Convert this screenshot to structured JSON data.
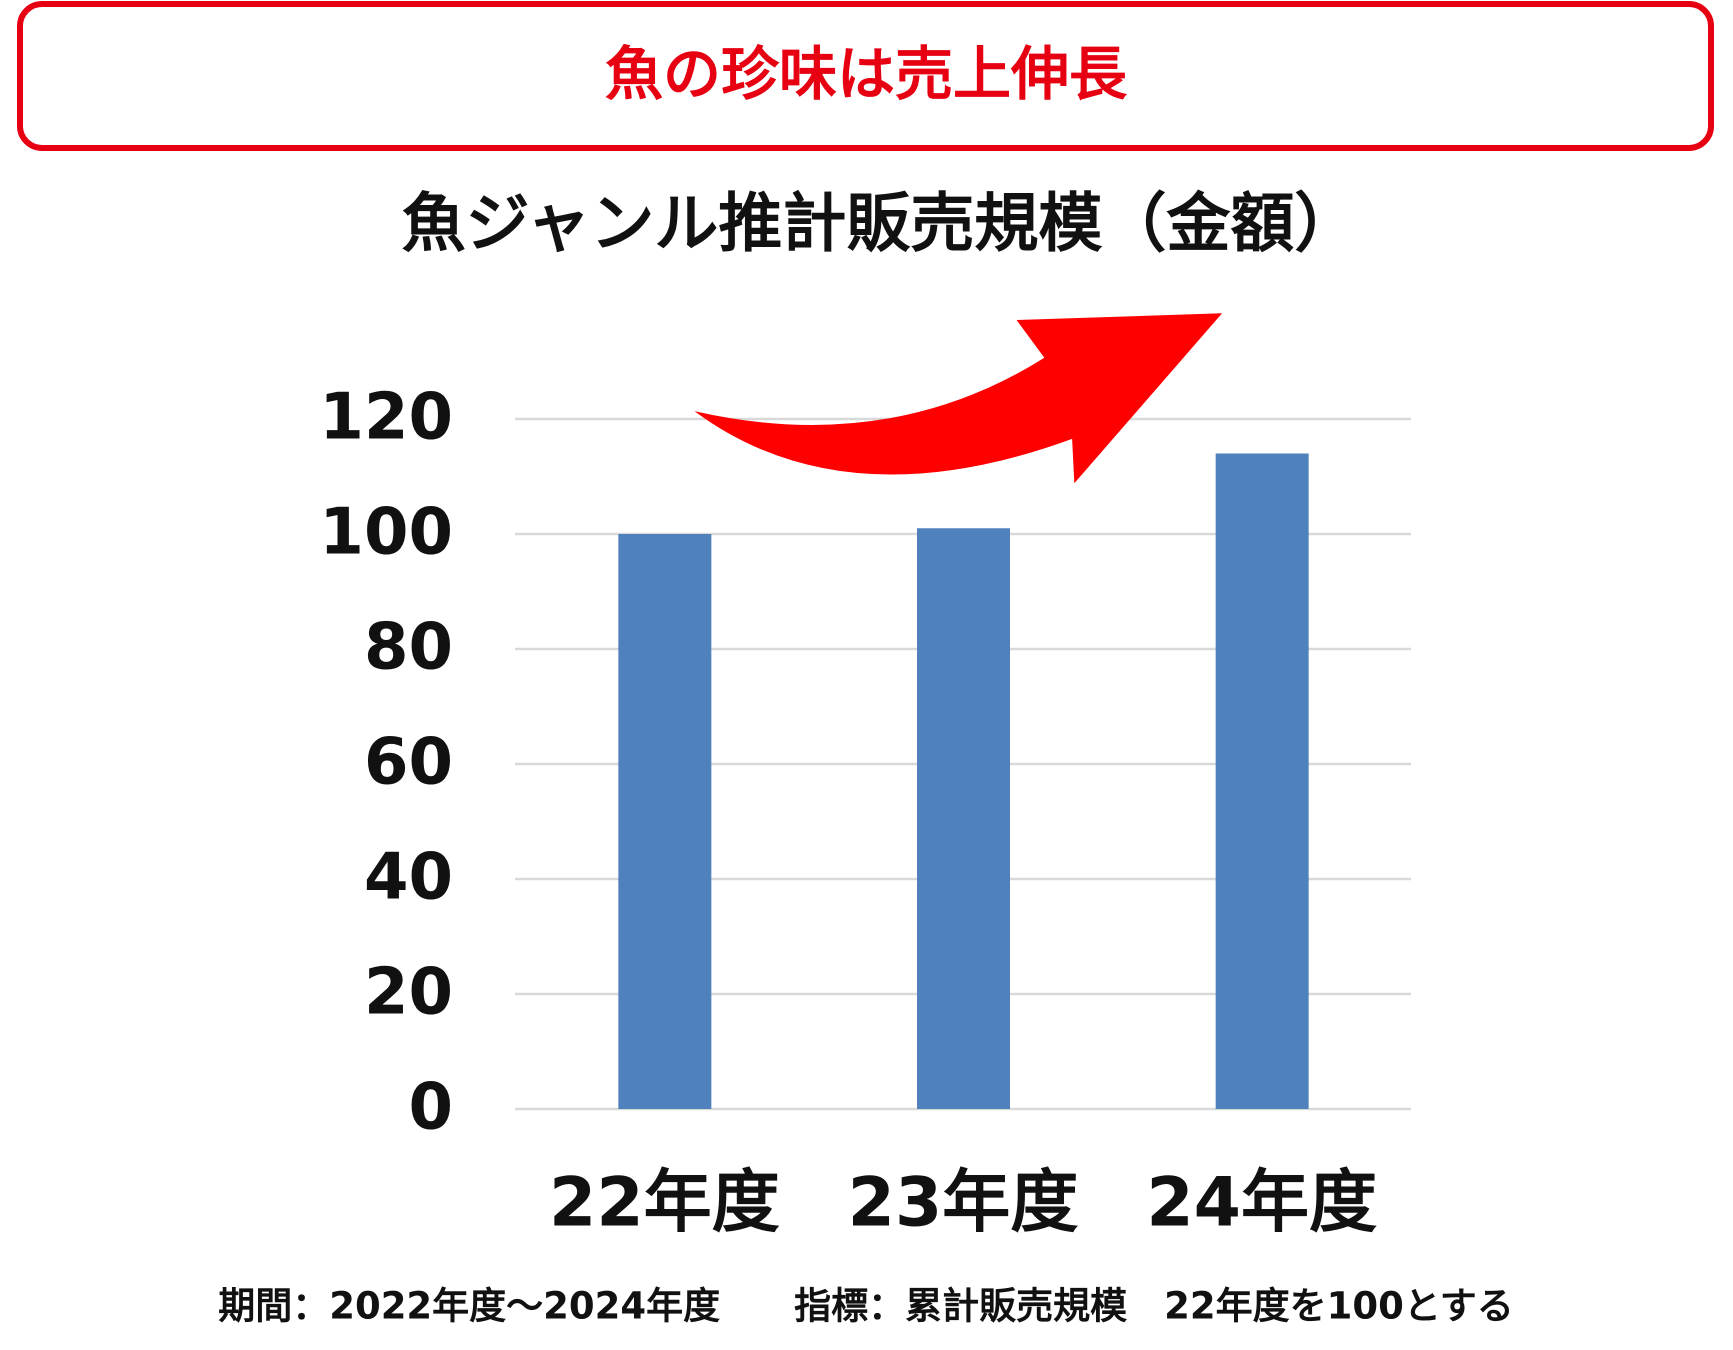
{
  "header": {
    "title": "魚の珍味は売上伸長"
  },
  "chart_data": {
    "type": "bar",
    "title": "魚ジャンル推計販売規模（金額）",
    "categories": [
      "22年度",
      "23年度",
      "24年度"
    ],
    "values": [
      100,
      101,
      114
    ],
    "color": "#4f81bd",
    "ylim": [
      0,
      120
    ],
    "yticks": [
      0,
      20,
      40,
      60,
      80,
      100,
      120
    ],
    "grid": true
  },
  "footer": {
    "note": "期間：2022年度～2024年度　　指標：累計販売規模　22年度を100とする"
  }
}
